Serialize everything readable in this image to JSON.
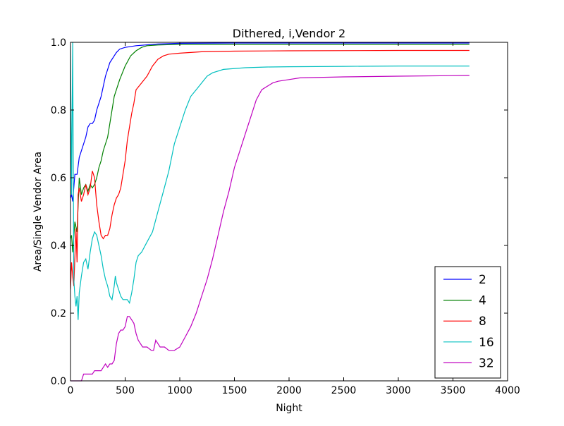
{
  "chart_data": {
    "type": "line",
    "title": "Dithered, i,Vendor 2",
    "xlabel": "Night",
    "ylabel": "Area/Single Vendor Area",
    "xlim": [
      0,
      4000
    ],
    "ylim": [
      0.0,
      1.0
    ],
    "xticks": [
      0,
      500,
      1000,
      1500,
      2000,
      2500,
      3000,
      3500,
      4000
    ],
    "xtick_labels": [
      "0",
      "500",
      "1000",
      "1500",
      "2000",
      "2500",
      "3000",
      "3500",
      "4000"
    ],
    "yticks": [
      0.0,
      0.2,
      0.4,
      0.6,
      0.8,
      1.0
    ],
    "ytick_labels": [
      "0.0",
      "0.2",
      "0.4",
      "0.6",
      "0.8",
      "1.0"
    ],
    "grid": false,
    "legend_position": "lower-right",
    "series": [
      {
        "name": "2",
        "color": "#0000ff",
        "points": [
          [
            0,
            0.54
          ],
          [
            10,
            0.55
          ],
          [
            20,
            0.53
          ],
          [
            40,
            0.61
          ],
          [
            60,
            0.61
          ],
          [
            80,
            0.66
          ],
          [
            100,
            0.68
          ],
          [
            120,
            0.7
          ],
          [
            140,
            0.72
          ],
          [
            160,
            0.75
          ],
          [
            180,
            0.76
          ],
          [
            200,
            0.76
          ],
          [
            220,
            0.77
          ],
          [
            240,
            0.8
          ],
          [
            260,
            0.82
          ],
          [
            280,
            0.84
          ],
          [
            300,
            0.87
          ],
          [
            320,
            0.9
          ],
          [
            340,
            0.92
          ],
          [
            360,
            0.94
          ],
          [
            380,
            0.95
          ],
          [
            400,
            0.96
          ],
          [
            420,
            0.97
          ],
          [
            450,
            0.98
          ],
          [
            500,
            0.985
          ],
          [
            600,
            0.99
          ],
          [
            800,
            0.995
          ],
          [
            1000,
            0.997
          ],
          [
            1500,
            0.998
          ],
          [
            2000,
            0.998
          ],
          [
            3000,
            0.998
          ],
          [
            3650,
            0.998
          ]
        ]
      },
      {
        "name": "4",
        "color": "#008000",
        "points": [
          [
            0,
            0.42
          ],
          [
            10,
            0.43
          ],
          [
            20,
            0.38
          ],
          [
            40,
            0.47
          ],
          [
            60,
            0.44
          ],
          [
            80,
            0.6
          ],
          [
            100,
            0.55
          ],
          [
            120,
            0.57
          ],
          [
            140,
            0.58
          ],
          [
            160,
            0.56
          ],
          [
            180,
            0.58
          ],
          [
            200,
            0.57
          ],
          [
            220,
            0.58
          ],
          [
            240,
            0.6
          ],
          [
            260,
            0.63
          ],
          [
            280,
            0.65
          ],
          [
            300,
            0.68
          ],
          [
            320,
            0.7
          ],
          [
            340,
            0.72
          ],
          [
            360,
            0.76
          ],
          [
            380,
            0.8
          ],
          [
            400,
            0.84
          ],
          [
            420,
            0.86
          ],
          [
            450,
            0.89
          ],
          [
            500,
            0.93
          ],
          [
            550,
            0.96
          ],
          [
            600,
            0.975
          ],
          [
            650,
            0.985
          ],
          [
            700,
            0.99
          ],
          [
            800,
            0.992
          ],
          [
            1000,
            0.994
          ],
          [
            1500,
            0.994
          ],
          [
            2000,
            0.994
          ],
          [
            3000,
            0.994
          ],
          [
            3650,
            0.994
          ]
        ]
      },
      {
        "name": "8",
        "color": "#ff0000",
        "points": [
          [
            0,
            0.27
          ],
          [
            10,
            0.35
          ],
          [
            20,
            0.31
          ],
          [
            30,
            0.28
          ],
          [
            50,
            0.45
          ],
          [
            60,
            0.35
          ],
          [
            70,
            0.55
          ],
          [
            80,
            0.57
          ],
          [
            100,
            0.53
          ],
          [
            120,
            0.55
          ],
          [
            140,
            0.58
          ],
          [
            160,
            0.55
          ],
          [
            180,
            0.57
          ],
          [
            200,
            0.62
          ],
          [
            220,
            0.6
          ],
          [
            240,
            0.52
          ],
          [
            260,
            0.47
          ],
          [
            280,
            0.43
          ],
          [
            300,
            0.42
          ],
          [
            320,
            0.43
          ],
          [
            340,
            0.43
          ],
          [
            360,
            0.45
          ],
          [
            380,
            0.49
          ],
          [
            400,
            0.52
          ],
          [
            420,
            0.54
          ],
          [
            440,
            0.55
          ],
          [
            460,
            0.57
          ],
          [
            480,
            0.61
          ],
          [
            500,
            0.65
          ],
          [
            520,
            0.71
          ],
          [
            540,
            0.75
          ],
          [
            560,
            0.79
          ],
          [
            580,
            0.82
          ],
          [
            600,
            0.86
          ],
          [
            650,
            0.88
          ],
          [
            700,
            0.9
          ],
          [
            750,
            0.93
          ],
          [
            800,
            0.95
          ],
          [
            850,
            0.96
          ],
          [
            900,
            0.965
          ],
          [
            1000,
            0.968
          ],
          [
            1200,
            0.972
          ],
          [
            1500,
            0.974
          ],
          [
            2000,
            0.975
          ],
          [
            3000,
            0.976
          ],
          [
            3650,
            0.976
          ]
        ]
      },
      {
        "name": "16",
        "color": "#00bfbf",
        "points": [
          [
            0,
            0.99
          ],
          [
            10,
            0.55
          ],
          [
            20,
            1.0
          ],
          [
            30,
            0.3
          ],
          [
            40,
            0.25
          ],
          [
            50,
            0.22
          ],
          [
            60,
            0.25
          ],
          [
            70,
            0.18
          ],
          [
            80,
            0.26
          ],
          [
            100,
            0.31
          ],
          [
            120,
            0.35
          ],
          [
            140,
            0.36
          ],
          [
            160,
            0.33
          ],
          [
            180,
            0.38
          ],
          [
            200,
            0.42
          ],
          [
            220,
            0.44
          ],
          [
            240,
            0.43
          ],
          [
            260,
            0.4
          ],
          [
            280,
            0.37
          ],
          [
            300,
            0.33
          ],
          [
            320,
            0.3
          ],
          [
            340,
            0.28
          ],
          [
            360,
            0.25
          ],
          [
            380,
            0.24
          ],
          [
            400,
            0.28
          ],
          [
            410,
            0.31
          ],
          [
            420,
            0.29
          ],
          [
            440,
            0.27
          ],
          [
            460,
            0.25
          ],
          [
            480,
            0.24
          ],
          [
            500,
            0.24
          ],
          [
            520,
            0.24
          ],
          [
            540,
            0.23
          ],
          [
            560,
            0.26
          ],
          [
            580,
            0.3
          ],
          [
            600,
            0.35
          ],
          [
            620,
            0.37
          ],
          [
            650,
            0.38
          ],
          [
            700,
            0.41
          ],
          [
            750,
            0.44
          ],
          [
            800,
            0.5
          ],
          [
            850,
            0.56
          ],
          [
            900,
            0.62
          ],
          [
            950,
            0.7
          ],
          [
            1000,
            0.75
          ],
          [
            1050,
            0.8
          ],
          [
            1100,
            0.84
          ],
          [
            1150,
            0.86
          ],
          [
            1200,
            0.88
          ],
          [
            1250,
            0.9
          ],
          [
            1300,
            0.91
          ],
          [
            1400,
            0.92
          ],
          [
            1600,
            0.925
          ],
          [
            1800,
            0.927
          ],
          [
            2000,
            0.928
          ],
          [
            2500,
            0.929
          ],
          [
            3000,
            0.93
          ],
          [
            3650,
            0.93
          ]
        ]
      },
      {
        "name": "32",
        "color": "#bf00bf",
        "points": [
          [
            0,
            0.0
          ],
          [
            80,
            0.0
          ],
          [
            100,
            0.0
          ],
          [
            120,
            0.02
          ],
          [
            140,
            0.02
          ],
          [
            160,
            0.02
          ],
          [
            180,
            0.02
          ],
          [
            200,
            0.02
          ],
          [
            220,
            0.03
          ],
          [
            240,
            0.03
          ],
          [
            260,
            0.03
          ],
          [
            280,
            0.03
          ],
          [
            300,
            0.04
          ],
          [
            320,
            0.05
          ],
          [
            340,
            0.04
          ],
          [
            360,
            0.05
          ],
          [
            380,
            0.05
          ],
          [
            400,
            0.06
          ],
          [
            420,
            0.11
          ],
          [
            440,
            0.14
          ],
          [
            460,
            0.15
          ],
          [
            480,
            0.15
          ],
          [
            500,
            0.16
          ],
          [
            520,
            0.19
          ],
          [
            540,
            0.19
          ],
          [
            560,
            0.18
          ],
          [
            580,
            0.17
          ],
          [
            600,
            0.14
          ],
          [
            620,
            0.12
          ],
          [
            640,
            0.11
          ],
          [
            660,
            0.1
          ],
          [
            700,
            0.1
          ],
          [
            740,
            0.09
          ],
          [
            760,
            0.09
          ],
          [
            780,
            0.12
          ],
          [
            800,
            0.11
          ],
          [
            820,
            0.1
          ],
          [
            860,
            0.1
          ],
          [
            900,
            0.09
          ],
          [
            950,
            0.09
          ],
          [
            1000,
            0.1
          ],
          [
            1050,
            0.13
          ],
          [
            1100,
            0.16
          ],
          [
            1150,
            0.2
          ],
          [
            1200,
            0.25
          ],
          [
            1250,
            0.3
          ],
          [
            1300,
            0.36
          ],
          [
            1350,
            0.43
          ],
          [
            1400,
            0.5
          ],
          [
            1450,
            0.56
          ],
          [
            1500,
            0.63
          ],
          [
            1550,
            0.68
          ],
          [
            1600,
            0.73
          ],
          [
            1650,
            0.78
          ],
          [
            1700,
            0.83
          ],
          [
            1750,
            0.86
          ],
          [
            1800,
            0.87
          ],
          [
            1850,
            0.88
          ],
          [
            1900,
            0.885
          ],
          [
            2000,
            0.89
          ],
          [
            2100,
            0.895
          ],
          [
            2500,
            0.898
          ],
          [
            3000,
            0.9
          ],
          [
            3650,
            0.902
          ]
        ]
      }
    ]
  }
}
